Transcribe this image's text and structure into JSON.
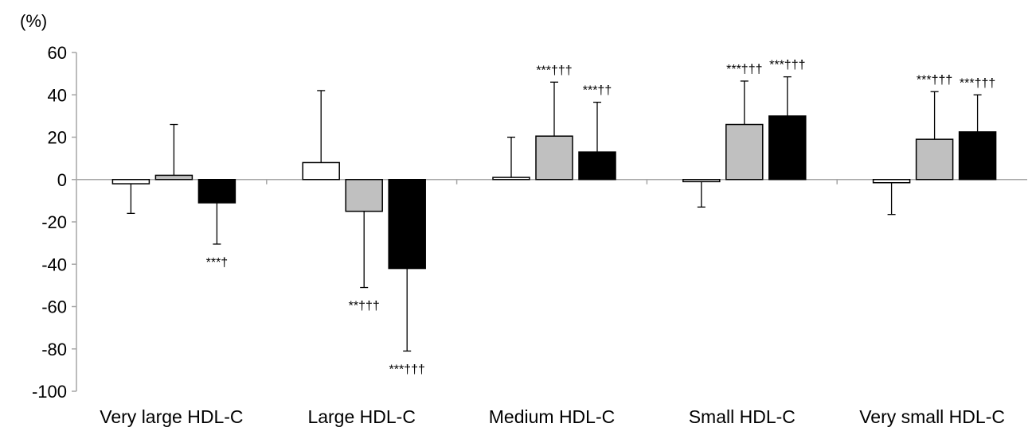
{
  "chart_data": {
    "type": "bar",
    "ylabel": "(%)",
    "ylim": [
      -100,
      60
    ],
    "yticks": [
      "60",
      "40",
      "20",
      "0",
      "-20",
      "-40",
      "-60",
      "-80",
      "-100"
    ],
    "categories": [
      "Very large HDL-C",
      "Large HDL-C",
      "Medium HDL-C",
      "Small HDL-C",
      "Very small HDL-C"
    ],
    "series": [
      {
        "color": "#ffffff",
        "values": [
          -2,
          8,
          1,
          -1,
          -1.5
        ],
        "error_plus": [
          0,
          34,
          19,
          0,
          0
        ],
        "error_minus": [
          14,
          0,
          0,
          12,
          15
        ],
        "annotations": [
          "",
          "",
          "",
          "",
          ""
        ]
      },
      {
        "color": "#c0c0c0",
        "values": [
          2,
          -15,
          20.5,
          26,
          19
        ],
        "error_plus": [
          24,
          0,
          25.5,
          20.5,
          22.5
        ],
        "error_minus": [
          0,
          36,
          0,
          0,
          0
        ],
        "annotations": [
          "",
          "**†††",
          "***†††",
          "***†††",
          "***†††"
        ]
      },
      {
        "color": "#000000",
        "values": [
          -11,
          -42,
          13,
          30,
          22.5
        ],
        "error_plus": [
          0,
          0,
          23.5,
          18.5,
          17.5
        ],
        "error_minus": [
          19.5,
          39,
          0,
          0,
          0
        ],
        "annotations": [
          "***†",
          "***†††",
          "***††",
          "***†††",
          "***†††"
        ]
      }
    ],
    "grid": false,
    "legend": "none"
  }
}
